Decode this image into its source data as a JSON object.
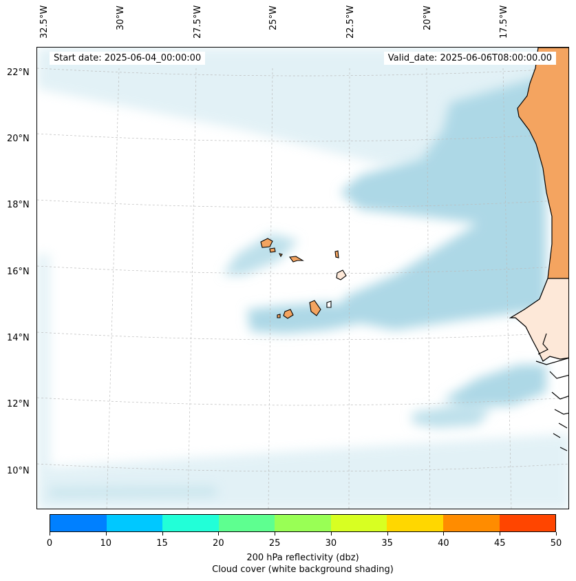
{
  "map": {
    "start_date": "Start date: 2025-06-04_00:00:00",
    "valid_date": "Valid_date: 2025-06-06T08:00:00.00",
    "lon_labels": [
      "32.5°W",
      "30°W",
      "27.5°W",
      "25°W",
      "22.5°W",
      "20°W",
      "17.5°W"
    ],
    "lat_labels": [
      "22°N",
      "20°N",
      "18°N",
      "16°N",
      "14°N",
      "12°N",
      "10°N"
    ],
    "colors": {
      "land": "#f4a460",
      "cloud": "#add8e6",
      "coastline": "#000000",
      "grid": "#bbbbbb"
    }
  },
  "colorbar": {
    "ticks": [
      "0",
      "10",
      "15",
      "20",
      "25",
      "30",
      "35",
      "40",
      "45",
      "50"
    ],
    "colors": [
      "#0080ff",
      "#00c8ff",
      "#22ffd8",
      "#5eff90",
      "#99ff55",
      "#d8ff22",
      "#ffd700",
      "#ff8c00",
      "#ff4500"
    ],
    "label_line1": "200 hPa reflectivity (dbz)",
    "label_line2": "Cloud cover (white background shading)"
  }
}
